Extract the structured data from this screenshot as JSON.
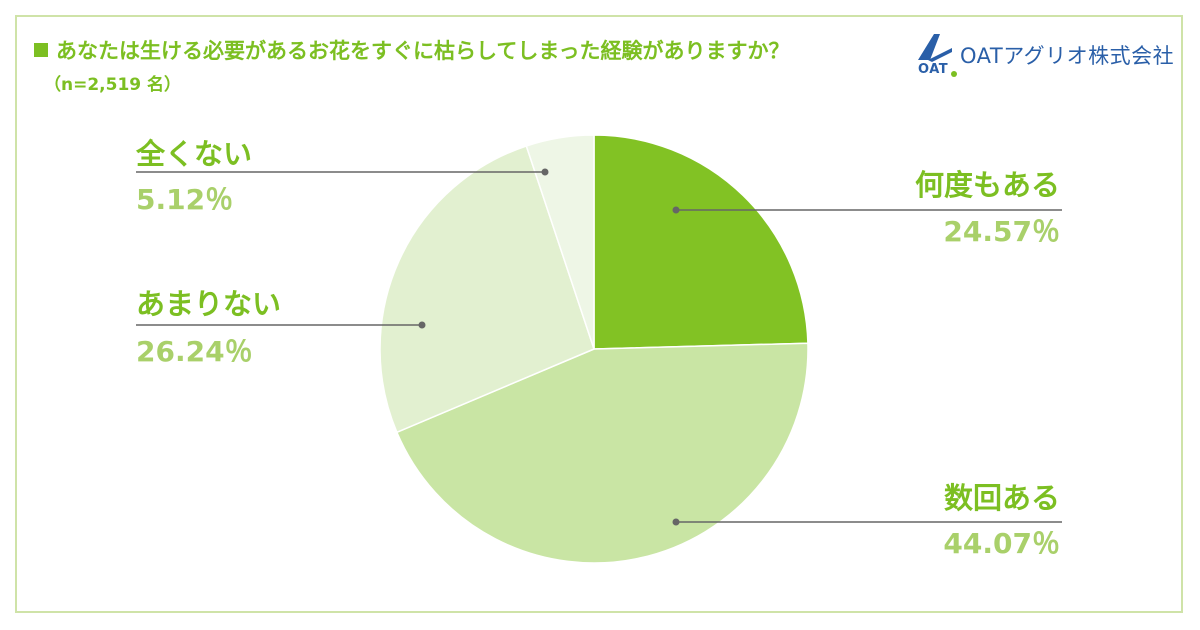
{
  "header": {
    "title": "あなたは生ける必要があるお花をすぐに枯らしてしまった経験がありますか？",
    "subtitle": "（n=2,519 名）"
  },
  "logo": {
    "company_name": "OATアグリオ株式会社",
    "mark_text": "OAT"
  },
  "colors": {
    "accent": "#7cbf22",
    "slice_1": "#82c224",
    "slice_2": "#c9e5a4",
    "slice_3": "#e2f0d0",
    "slice_4": "#eef6e6",
    "leader": "#666666",
    "logo": "#2a5fa8"
  },
  "chart_data": {
    "type": "pie",
    "start": "12 o'clock",
    "direction": "clockwise",
    "slices": [
      {
        "label": "何度もある",
        "value": 24.57,
        "display": "24.57％",
        "color": "#82c224"
      },
      {
        "label": "数回ある",
        "value": 44.07,
        "display": "44.07％",
        "color": "#c9e5a4"
      },
      {
        "label": "あまりない",
        "value": 26.24,
        "display": "26.24％",
        "color": "#e2f0d0"
      },
      {
        "label": "全くない",
        "value": 5.12,
        "display": "5.12％",
        "color": "#eef6e6"
      }
    ]
  }
}
